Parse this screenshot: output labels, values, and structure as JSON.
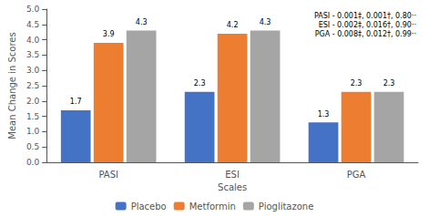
{
  "chart_data": {
    "type": "bar",
    "categories": [
      "PASI",
      "ESI",
      "PGA"
    ],
    "series": [
      {
        "name": "Placebo",
        "color": "#4472C4",
        "values": [
          1.7,
          2.3,
          1.3
        ]
      },
      {
        "name": "Metformin",
        "color": "#ED7D31",
        "values": [
          3.9,
          4.2,
          2.3
        ]
      },
      {
        "name": "Pioglitazone",
        "color": "#A5A5A5",
        "values": [
          4.3,
          4.3,
          2.3
        ]
      }
    ],
    "xlabel": "Scales",
    "ylabel": "Mean Change in Scores",
    "ylim": [
      0,
      5
    ],
    "yticks": [
      {
        "value": 0,
        "label": "0.0"
      },
      0.5,
      {
        "value": 1,
        "label": "1.0"
      },
      1.5,
      {
        "value": 2,
        "label": "2.0"
      },
      2.5,
      {
        "value": 3,
        "label": "3.0"
      },
      3.5,
      {
        "value": 4,
        "label": "4.0"
      },
      4.5,
      {
        "value": 5,
        "label": "5.0"
      }
    ],
    "annotations": [
      "PASI - 0.001‡, 0.001†, 0.80··",
      "ESI - 0.002‡, 0.016†, 0.90··",
      "PGA - 0.008‡, 0.012†, 0.99··"
    ],
    "data_labels": true,
    "legend": "bottom",
    "grid": false
  }
}
